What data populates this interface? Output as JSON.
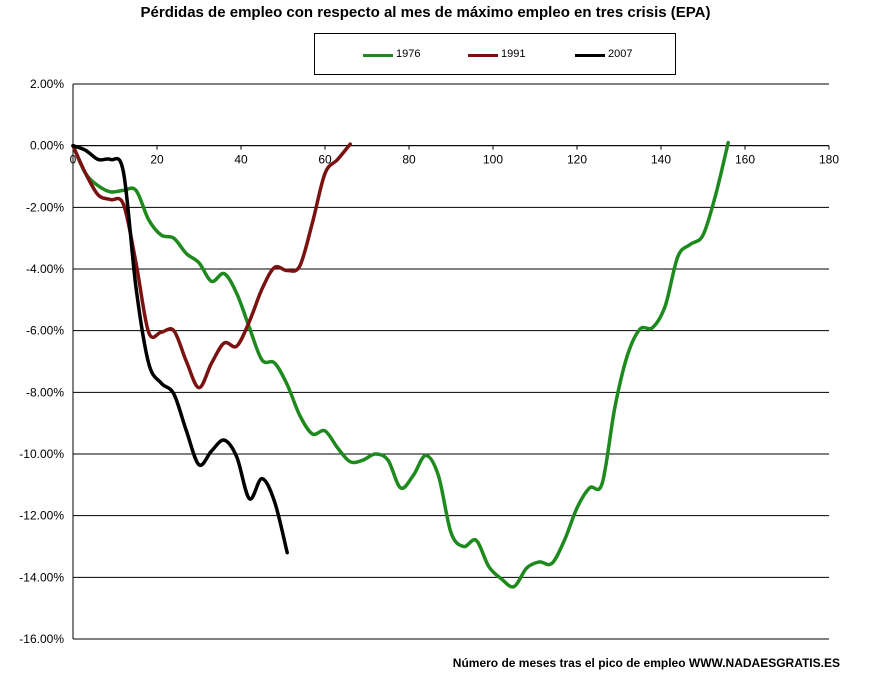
{
  "chart_data": {
    "type": "line",
    "title": "Pérdidas de empleo con respecto al mes de máximo empleo en tres crisis (EPA)",
    "xlabel": "Número de meses tras el pico de empleo WWW.NADAESGRATIS.ES",
    "ylabel": "",
    "xlim": [
      0,
      180
    ],
    "ylim": [
      -16,
      2
    ],
    "x_ticks": [
      "0",
      "20",
      "40",
      "60",
      "80",
      "100",
      "120",
      "140",
      "160",
      "180"
    ],
    "x_tick_values": [
      0,
      20,
      40,
      60,
      80,
      100,
      120,
      140,
      160,
      180
    ],
    "y_ticks": [
      "2.00%",
      "0.00%",
      "-2.00%",
      "-4.00%",
      "-6.00%",
      "-8.00%",
      "-10.00%",
      "-12.00%",
      "-14.00%",
      "-16.00%"
    ],
    "y_tick_values": [
      2,
      0,
      -2,
      -4,
      -6,
      -8,
      -10,
      -12,
      -14,
      -16
    ],
    "grid": "horizontal",
    "legend_position": "top",
    "series": [
      {
        "name": "1976",
        "color": "#1e8a1e",
        "x": [
          0,
          3,
          6,
          9,
          12,
          15,
          18,
          21,
          24,
          27,
          30,
          33,
          36,
          39,
          42,
          45,
          48,
          51,
          54,
          57,
          60,
          63,
          66,
          69,
          72,
          75,
          78,
          81,
          84,
          87,
          90,
          93,
          96,
          99,
          102,
          105,
          108,
          111,
          114,
          117,
          120,
          123,
          126,
          129,
          132,
          135,
          138,
          141,
          144,
          147,
          150,
          153,
          156
        ],
        "y": [
          0,
          -0.9,
          -1.3,
          -1.5,
          -1.45,
          -1.45,
          -2.4,
          -2.9,
          -3.0,
          -3.5,
          -3.8,
          -4.4,
          -4.15,
          -4.8,
          -5.9,
          -6.95,
          -7.05,
          -7.75,
          -8.75,
          -9.35,
          -9.25,
          -9.8,
          -10.25,
          -10.2,
          -10.0,
          -10.2,
          -11.1,
          -10.7,
          -10.05,
          -10.7,
          -12.55,
          -13.0,
          -12.8,
          -13.65,
          -14.05,
          -14.3,
          -13.7,
          -13.5,
          -13.55,
          -12.8,
          -11.75,
          -11.1,
          -10.95,
          -8.5,
          -6.8,
          -5.95,
          -5.9,
          -5.2,
          -3.6,
          -3.2,
          -2.9,
          -1.6,
          0.1
        ]
      },
      {
        "name": "1991",
        "color": "#7b1212",
        "x": [
          0,
          3,
          6,
          9,
          12,
          15,
          18,
          21,
          24,
          27,
          30,
          33,
          36,
          39,
          42,
          45,
          48,
          51,
          54,
          57,
          60,
          63,
          66
        ],
        "y": [
          0,
          -0.9,
          -1.6,
          -1.75,
          -1.9,
          -3.8,
          -6.05,
          -6.05,
          -6.0,
          -7.0,
          -7.85,
          -7.05,
          -6.4,
          -6.5,
          -5.7,
          -4.65,
          -3.95,
          -4.05,
          -3.9,
          -2.5,
          -0.9,
          -0.45,
          0.05
        ]
      },
      {
        "name": "2007",
        "color": "#000000",
        "x": [
          0,
          3,
          6,
          9,
          12,
          15,
          18,
          21,
          24,
          27,
          30,
          33,
          36,
          39,
          42,
          45,
          48,
          51
        ],
        "y": [
          0,
          -0.15,
          -0.45,
          -0.45,
          -0.85,
          -4.6,
          -7.05,
          -7.7,
          -8.05,
          -9.25,
          -10.35,
          -9.9,
          -9.55,
          -10.1,
          -11.45,
          -10.8,
          -11.55,
          -13.2
        ]
      }
    ]
  }
}
